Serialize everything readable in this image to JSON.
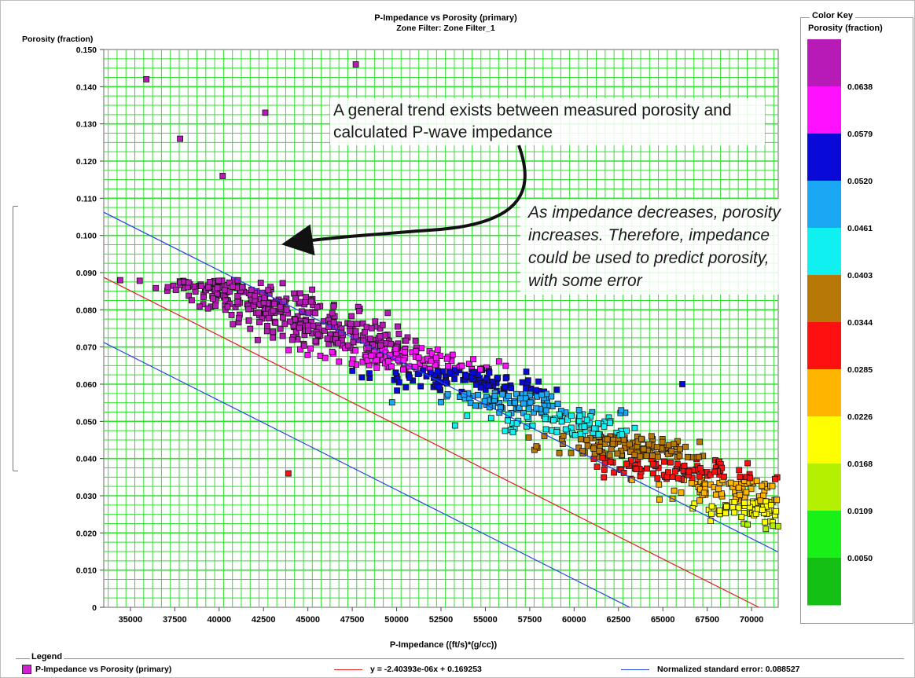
{
  "chart_data": {
    "type": "scatter",
    "title": "P-Impedance vs Porosity (primary)",
    "subtitle": "Zone Filter: Zone Filter_1",
    "xlabel": "P-Impedance ((ft/s)*(g/cc))",
    "ylabel": "Porosity (fraction)",
    "xlim": [
      33500,
      71500
    ],
    "ylim": [
      0,
      0.15
    ],
    "grid": true,
    "x_ticks": [
      "35000",
      "37500",
      "40000",
      "42500",
      "45000",
      "47500",
      "50000",
      "52500",
      "55000",
      "57500",
      "60000",
      "62500",
      "65000",
      "67500",
      "70000"
    ],
    "y_ticks": [
      "0",
      "0.010",
      "0.020",
      "0.030",
      "0.040",
      "0.050",
      "0.060",
      "0.070",
      "0.080",
      "0.090",
      "0.100",
      "0.110",
      "0.120",
      "0.130",
      "0.140",
      "0.150"
    ],
    "regression": {
      "label": "y = -2.40393e-06x + 0.169253",
      "slope": -2.40393e-06,
      "intercept": 0.169253,
      "color": "#e02020"
    },
    "error_band": {
      "label": "Normalized standard error: 0.088527",
      "offset": 0.0175,
      "color": "#2040e0"
    },
    "series": [
      {
        "name": "P-Impedance vs Porosity (primary)",
        "color": "#d020d0"
      }
    ],
    "sample_points": [
      {
        "x": 35900,
        "y": 0.142
      },
      {
        "x": 37800,
        "y": 0.126
      },
      {
        "x": 40200,
        "y": 0.116
      },
      {
        "x": 42600,
        "y": 0.133
      },
      {
        "x": 47700,
        "y": 0.146
      },
      {
        "x": 66100,
        "y": 0.06
      },
      {
        "x": 68200,
        "y": 0.026
      },
      {
        "x": 43900,
        "y": 0.036
      }
    ],
    "color_key": {
      "title": "Color Key",
      "variable": "Porosity (fraction)",
      "labels": [
        "0.0638",
        "0.0579",
        "0.0520",
        "0.0461",
        "0.0403",
        "0.0344",
        "0.0285",
        "0.0226",
        "0.0168",
        "0.0109",
        "0.0050"
      ],
      "colors": [
        "#b81ab8",
        "#ff10ff",
        "#0a0ad8",
        "#1aa8f5",
        "#10f0f0",
        "#b87808",
        "#ff1010",
        "#ffb400",
        "#ffff00",
        "#b4f000",
        "#18f018",
        "#14c014"
      ]
    }
  },
  "annotations": {
    "trend": "A general trend exists between measured porosity and calculated P-wave impedance",
    "explanation": "As impedance decreases, porosity increases.  Therefore, impedance could be used to predict porosity, with some error"
  },
  "legend": {
    "title": "Legend",
    "series_label": "P-Impedance vs Porosity (primary)",
    "regression_label": "y = -2.40393e-06x + 0.169253",
    "error_label": "Normalized standard error: 0.088527"
  }
}
